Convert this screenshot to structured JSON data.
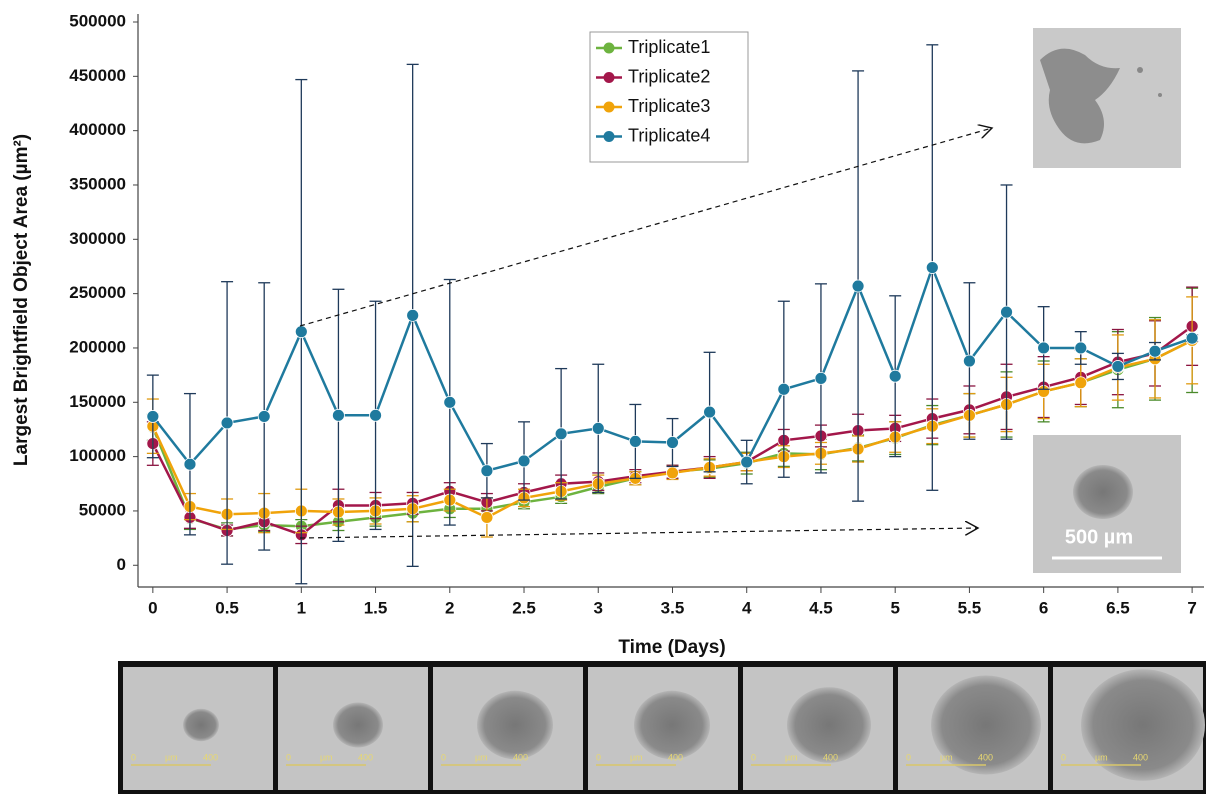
{
  "chart_data": {
    "type": "line",
    "x_label": "Time (Days)",
    "y_label": "Largest Brightfield Object Area (µm²)",
    "x": [
      0,
      0.25,
      0.5,
      0.75,
      1,
      1.25,
      1.5,
      1.75,
      2,
      2.25,
      2.5,
      2.75,
      3,
      3.25,
      3.5,
      3.75,
      4,
      4.25,
      4.5,
      4.75,
      5,
      5.25,
      5.5,
      5.75,
      6,
      6.25,
      6.5,
      6.75,
      7
    ],
    "xlim": [
      -0.1,
      7.08
    ],
    "ylim": [
      -20000,
      500000
    ],
    "xticks": [
      0,
      0.5,
      1,
      1.5,
      2,
      2.5,
      3,
      3.5,
      4,
      4.5,
      5,
      5.5,
      6,
      6.5,
      7
    ],
    "yticks": [
      0,
      50000,
      100000,
      150000,
      200000,
      250000,
      300000,
      350000,
      400000,
      450000,
      500000
    ],
    "series": [
      {
        "name": "Triplicate1",
        "color": "#6db33f",
        "error_color": "#4a8a2a",
        "values": [
          127000,
          43000,
          33000,
          37000,
          36000,
          40000,
          44000,
          48000,
          52000,
          52000,
          58000,
          63000,
          72000,
          80000,
          86000,
          89000,
          94000,
          103000,
          102000,
          108000,
          117000,
          129000,
          138000,
          148000,
          160000,
          168000,
          180000,
          190000,
          207000
        ],
        "errors": [
          12000,
          10000,
          6000,
          6000,
          6000,
          8000,
          8000,
          8000,
          8000,
          8000,
          6000,
          6000,
          6000,
          6000,
          6000,
          8000,
          10000,
          12000,
          14000,
          12000,
          15000,
          18000,
          20000,
          30000,
          28000,
          22000,
          35000,
          38000,
          48000
        ]
      },
      {
        "name": "Triplicate2",
        "color": "#a3174a",
        "error_color": "#8a1440",
        "values": [
          112000,
          44000,
          32000,
          40000,
          28000,
          55000,
          55000,
          57000,
          68000,
          58000,
          67000,
          75000,
          77000,
          82000,
          86000,
          90000,
          95000,
          115000,
          119000,
          124000,
          126000,
          135000,
          143000,
          155000,
          164000,
          173000,
          187000,
          195000,
          220000
        ],
        "errors": [
          20000,
          10000,
          5000,
          8000,
          8000,
          15000,
          12000,
          10000,
          8000,
          8000,
          8000,
          8000,
          8000,
          6000,
          6000,
          10000,
          8000,
          10000,
          10000,
          15000,
          12000,
          18000,
          22000,
          30000,
          28000,
          25000,
          30000,
          30000,
          36000
        ]
      },
      {
        "name": "Triplicate3",
        "color": "#f0a30a",
        "error_color": "#e09a10",
        "values": [
          128000,
          54000,
          47000,
          48000,
          50000,
          49000,
          50000,
          52000,
          60000,
          44000,
          62000,
          68000,
          75000,
          80000,
          85000,
          90000,
          95000,
          100000,
          103000,
          107000,
          118000,
          128000,
          138000,
          148000,
          160000,
          168000,
          182000,
          190000,
          207000
        ],
        "errors": [
          25000,
          12000,
          14000,
          18000,
          20000,
          12000,
          12000,
          12000,
          10000,
          18000,
          8000,
          8000,
          8000,
          6000,
          6000,
          8000,
          8000,
          10000,
          10000,
          12000,
          14000,
          16000,
          20000,
          25000,
          25000,
          22000,
          30000,
          36000,
          40000
        ]
      },
      {
        "name": "Triplicate4",
        "color": "#1f7a9e",
        "error_color": "#1f3a5a",
        "values": [
          137000,
          93000,
          131000,
          137000,
          215000,
          138000,
          138000,
          230000,
          150000,
          87000,
          96000,
          121000,
          126000,
          114000,
          113000,
          141000,
          95000,
          162000,
          172000,
          257000,
          174000,
          274000,
          188000,
          233000,
          200000,
          200000,
          183000,
          197000,
          209000
        ],
        "errors": [
          38000,
          65000,
          130000,
          123000,
          232000,
          116000,
          105000,
          231000,
          113000,
          25000,
          36000,
          60000,
          59000,
          34000,
          22000,
          55000,
          20000,
          81000,
          87000,
          198000,
          74000,
          205000,
          72000,
          117000,
          38000,
          15000,
          12000,
          8000,
          3000
        ]
      }
    ],
    "legend": "upper center"
  },
  "inset_scale_label": "500 µm",
  "strip_scale": {
    "start": "0",
    "unit": "µm",
    "end": "400"
  }
}
